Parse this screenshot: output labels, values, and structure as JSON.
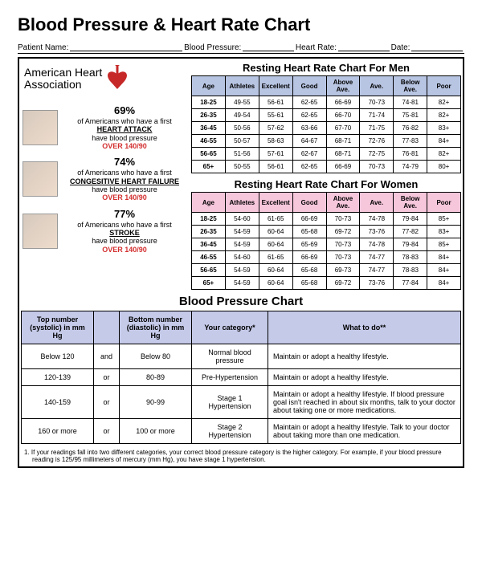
{
  "title": "Blood Pressure & Heart Rate Chart",
  "info_labels": {
    "patient": "Patient Name:",
    "bp": "Blood Pressure:",
    "hr": "Heart Rate:",
    "date": "Date:"
  },
  "aha": {
    "line1": "American Heart",
    "line2": "Association"
  },
  "stats": [
    {
      "pct": "69%",
      "line1": "of Americans who have a first",
      "emph": "HEART ATTACK",
      "line2": "have blood pressure",
      "red": "OVER 140/90"
    },
    {
      "pct": "74%",
      "line1": "of Americans who have a first",
      "emph": "CONGESITIVE HEART FAILURE",
      "line2": "have blood pressure",
      "red": "OVER 140/90"
    },
    {
      "pct": "77%",
      "line1": "of Americans who have a first",
      "emph": "STROKE",
      "line2": "have blood pressure",
      "red": "OVER 140/90"
    }
  ],
  "hr_colors": {
    "men": {
      "age": "#b7c4e2",
      "athletes": "#b7c4e2",
      "excellent": "#b7c4e2",
      "good": "#b7c4e2",
      "above": "#b7c4e2",
      "ave": "#b7c4e2",
      "below": "#b7c4e2",
      "poor": "#b7c4e2"
    },
    "women": {
      "age": "#f6c6db",
      "athletes": "#f6c6db",
      "excellent": "#f6c6db",
      "good": "#f6c6db",
      "above": "#f6c6db",
      "ave": "#f6c6db",
      "below": "#f6c6db",
      "poor": "#f6c6db"
    },
    "bp_header": "#c5cae9"
  },
  "hr_tables": {
    "men": {
      "title": "Resting Heart Rate Chart For Men",
      "headers": [
        "Age",
        "Athletes",
        "Excellent",
        "Good",
        "Above Ave.",
        "Ave.",
        "Below Ave.",
        "Poor"
      ],
      "rows": [
        [
          "18-25",
          "49-55",
          "56-61",
          "62-65",
          "66-69",
          "70-73",
          "74-81",
          "82+"
        ],
        [
          "26-35",
          "49-54",
          "55-61",
          "62-65",
          "66-70",
          "71-74",
          "75-81",
          "82+"
        ],
        [
          "36-45",
          "50-56",
          "57-62",
          "63-66",
          "67-70",
          "71-75",
          "76-82",
          "83+"
        ],
        [
          "46-55",
          "50-57",
          "58-63",
          "64-67",
          "68-71",
          "72-76",
          "77-83",
          "84+"
        ],
        [
          "56-65",
          "51-56",
          "57-61",
          "62-67",
          "68-71",
          "72-75",
          "76-81",
          "82+"
        ],
        [
          "65+",
          "50-55",
          "56-61",
          "62-65",
          "66-69",
          "70-73",
          "74-79",
          "80+"
        ]
      ]
    },
    "women": {
      "title": "Resting Heart Rate Chart For Women",
      "headers": [
        "Age",
        "Athletes",
        "Excellent",
        "Good",
        "Above Ave.",
        "Ave.",
        "Below Ave.",
        "Poor"
      ],
      "rows": [
        [
          "18-25",
          "54-60",
          "61-65",
          "66-69",
          "70-73",
          "74-78",
          "79-84",
          "85+"
        ],
        [
          "26-35",
          "54-59",
          "60-64",
          "65-68",
          "69-72",
          "73-76",
          "77-82",
          "83+"
        ],
        [
          "36-45",
          "54-59",
          "60-64",
          "65-69",
          "70-73",
          "74-78",
          "79-84",
          "85+"
        ],
        [
          "46-55",
          "54-60",
          "61-65",
          "66-69",
          "70-73",
          "74-77",
          "78-83",
          "84+"
        ],
        [
          "56-65",
          "54-59",
          "60-64",
          "65-68",
          "69-73",
          "74-77",
          "78-83",
          "84+"
        ],
        [
          "65+",
          "54-59",
          "60-64",
          "65-68",
          "69-72",
          "73-76",
          "77-84",
          "84+"
        ]
      ]
    }
  },
  "bp_table": {
    "title": "Blood Pressure Chart",
    "headers": [
      "Top number (systolic) in mm Hg",
      "",
      "Bottom number (diastolic) in mm Hg",
      "Your category*",
      "What to do**"
    ],
    "col_widths": [
      "90px",
      "32px",
      "90px",
      "95px",
      "auto"
    ],
    "rows": [
      [
        "Below 120",
        "and",
        "Below 80",
        "Normal blood pressure",
        "Maintain or adopt a healthy lifestyle."
      ],
      [
        "120-139",
        "or",
        "80-89",
        "Pre-Hypertension",
        "Maintain or adopt a healthy lifestyle."
      ],
      [
        "140-159",
        "or",
        "90-99",
        "Stage 1 Hypertension",
        "Maintain or adopt a healthy lifestyle. If blood pressure goal isn't reached in about six months, talk to your doctor about taking one or more medications."
      ],
      [
        "160 or more",
        "or",
        "100 or more",
        "Stage 2 Hypertension",
        "Maintain or adopt a healthy lifestyle. Talk to your doctor about taking more than one medication."
      ]
    ]
  },
  "footnote": "1.   If your readings fall into two different categories, your correct blood pressure category is the higher category. For example, if your blood pressure reading is 125/95 millimeters of mercury (mm Hg), you have stage 1 hypertension."
}
